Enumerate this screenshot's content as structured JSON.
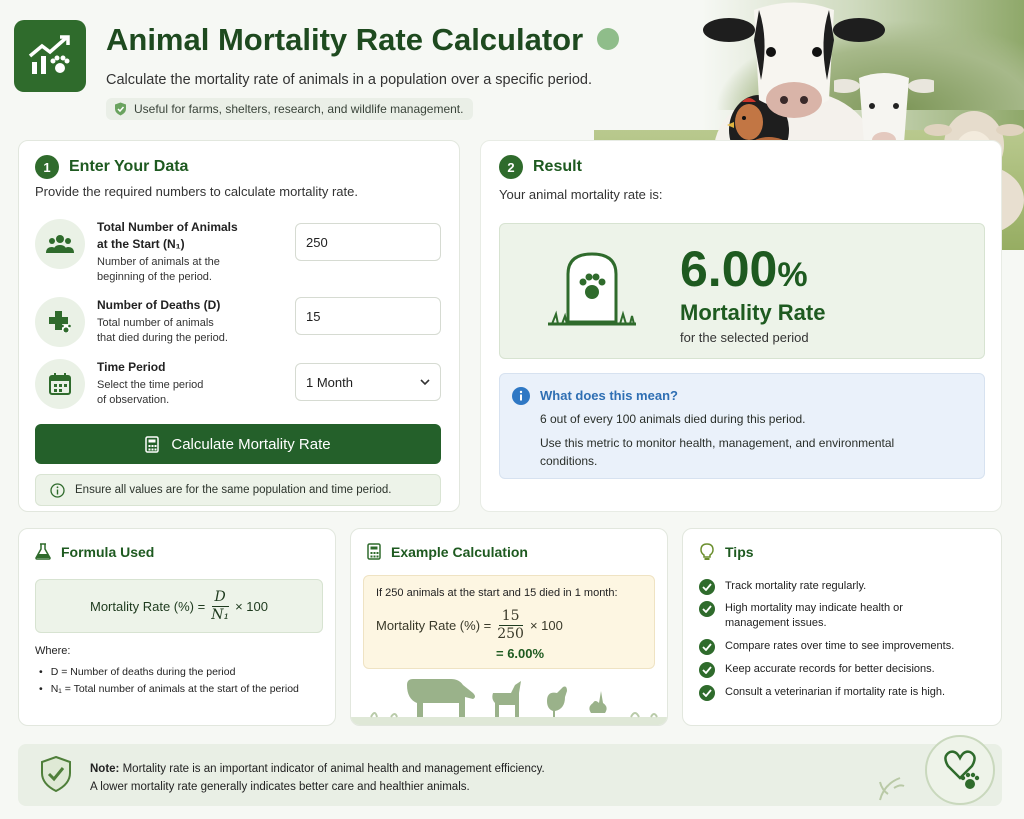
{
  "header": {
    "title": "Animal Mortality Rate Calculator",
    "subtitle": "Calculate the mortality rate of animals in a population over a specific period.",
    "pill": "Useful for farms, shelters, research, and wildlife management."
  },
  "input_card": {
    "step": "1",
    "heading": "Enter Your Data",
    "description": "Provide the required numbers to calculate mortality rate.",
    "fields": [
      {
        "label_line1": "Total Number of Animals",
        "label_line2": "at the Start (N₁)",
        "help_line1": "Number of animals at the",
        "help_line2": "beginning of the period.",
        "value": "250"
      },
      {
        "label_line1": "Number of Deaths (D)",
        "help_line1": "Total number of animals",
        "help_line2": "that died during the period.",
        "value": "15"
      },
      {
        "label_line1": "Time Period",
        "help_line1": "Select the time period",
        "help_line2": "of observation.",
        "value": "1 Month"
      }
    ],
    "button": "Calculate Mortality Rate",
    "note": "Ensure all values are for the same population and time period."
  },
  "result_card": {
    "step": "2",
    "heading": "Result",
    "description": "Your animal mortality rate is:",
    "value": "6.00",
    "unit": "%",
    "label": "Mortality Rate",
    "sublabel": "for the selected period",
    "info_heading": "What does this mean?",
    "info_line1": "6 out of every 100 animals died during this period.",
    "info_line2": "Use this metric to monitor health, management, and environmental conditions."
  },
  "formula_card": {
    "heading": "Formula Used",
    "lhs": "Mortality Rate (%) =",
    "numerator": "D",
    "denominator": "N₁",
    "times": "× 100",
    "where": "Where:",
    "bullets": [
      "D = Number of deaths during the period",
      "N₁ = Total number of animals at the start of the period"
    ]
  },
  "example_card": {
    "heading": "Example Calculation",
    "intro": "If 250 animals at the start and 15 died in 1 month:",
    "lhs": "Mortality Rate (%) =",
    "numerator": "15",
    "denominator": "250",
    "times": "× 100",
    "result": "= 6.00%"
  },
  "tips_card": {
    "heading": "Tips",
    "items": [
      "Track mortality rate regularly.",
      "High mortality may indicate health or management issues.",
      "Compare rates over time to see improvements.",
      "Keep accurate records for better decisions.",
      "Consult a veterinarian if mortality rate is high."
    ]
  },
  "note_card": {
    "label": "Note:",
    "line1": "Mortality rate is an important indicator of animal health and management efficiency.",
    "line2": "A lower mortality rate generally indicates better care and healthier animals."
  },
  "colors": {
    "primary": "#2f6b2c",
    "heading": "#1e5a20",
    "info": "#2f6fb3",
    "example_bg": "#fdf6e2"
  },
  "icons": [
    "chart-paw-icon",
    "shield-check-icon",
    "group-icon",
    "medical-paw-icon",
    "calendar-icon",
    "calculator-icon",
    "info-icon",
    "gravestone-paw-icon",
    "flask-icon",
    "lightbulb-icon",
    "check-icon",
    "chevron-down-icon"
  ]
}
